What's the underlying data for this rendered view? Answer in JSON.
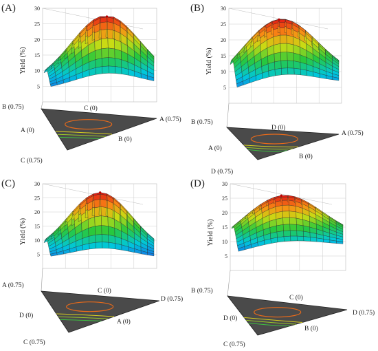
{
  "chart_data": [
    {
      "type": "surface",
      "panel_label": "(A)",
      "ylabel": "Yield (%)",
      "z_ticks": [
        "5",
        "10",
        "15",
        "20",
        "25",
        "30"
      ],
      "zlim": [
        0,
        30
      ],
      "corners": {
        "back": "B (0.75)",
        "mid": "C (0)",
        "right": "A (0.75)",
        "left": "A (0)",
        "front": "B (0)",
        "bottom": "C (0.75)"
      },
      "peak_yield": 27,
      "min_yield": 4
    },
    {
      "type": "surface",
      "panel_label": "(B)",
      "ylabel": "Yield (%)",
      "z_ticks": [
        "5",
        "10",
        "15",
        "20",
        "25",
        "30"
      ],
      "zlim": [
        0,
        30
      ],
      "corners": {
        "back": "B (0.75)",
        "mid": "D (0)",
        "right": "A (0.75)",
        "left": "A (0)",
        "front": "B (0)",
        "bottom": "D (0.75)"
      },
      "peak_yield": 26,
      "min_yield": 4
    },
    {
      "type": "surface",
      "panel_label": "(C)",
      "ylabel": "Yield (%)",
      "z_ticks": [
        "5",
        "10",
        "15",
        "20",
        "25",
        "30"
      ],
      "zlim": [
        0,
        30
      ],
      "corners": {
        "back": "A (0.75)",
        "mid": "C (0)",
        "right": "D (0.75)",
        "left": "D (0)",
        "front": "A (0)",
        "bottom": "C (0.75)"
      },
      "peak_yield": 26,
      "min_yield": 3
    },
    {
      "type": "surface",
      "panel_label": "(D)",
      "ylabel": "Yield (%)",
      "z_ticks": [
        "5",
        "10",
        "15",
        "20",
        "25",
        "30"
      ],
      "zlim": [
        0,
        30
      ],
      "corners": {
        "back": "B (0.75)",
        "mid": "C (0)",
        "right": "D (0.75)",
        "left": "D (0)",
        "front": "B (0)",
        "bottom": "C (0.75)"
      },
      "peak_yield": 25,
      "min_yield": 6
    }
  ]
}
